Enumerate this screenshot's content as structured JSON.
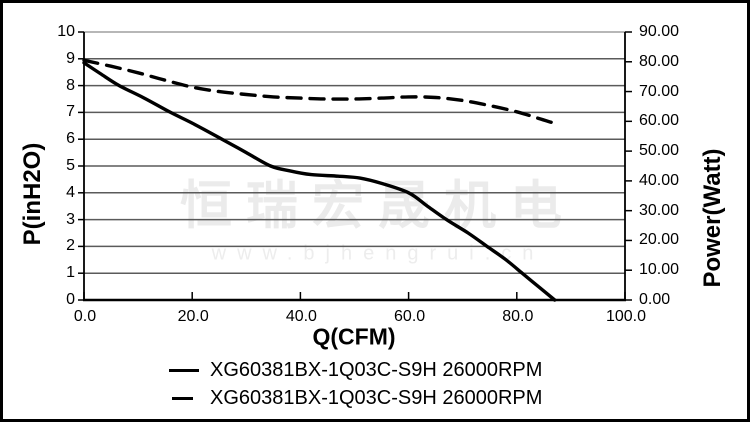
{
  "watermark": {
    "chinese": "恒瑞宏晟机电",
    "url": "www.bjhengrui.cn"
  },
  "colors": {
    "line": "#000000",
    "gridline": "#5a5a5a",
    "plot_border": "#000000",
    "watermark": "#ebebeb"
  },
  "chart_data": {
    "type": "line",
    "title": "",
    "grid": true,
    "x_axis": {
      "label": "Q(CFM)",
      "min": 0,
      "max": 100,
      "ticks": [
        0,
        20,
        40,
        60,
        80,
        100
      ],
      "tick_labels": [
        "0.0",
        "20.0",
        "40.0",
        "60.0",
        "80.0",
        "100.0"
      ]
    },
    "y_left": {
      "label": "P(inH2O)",
      "min": 0,
      "max": 10,
      "ticks": [
        0,
        1,
        2,
        3,
        4,
        5,
        6,
        7,
        8,
        9,
        10
      ],
      "tick_labels": [
        "0",
        "1",
        "2",
        "3",
        "4",
        "5",
        "6",
        "7",
        "8",
        "9",
        "10"
      ]
    },
    "y_right": {
      "label": "Power(Watt)",
      "min": 0,
      "max": 90,
      "ticks": [
        0,
        10,
        20,
        30,
        40,
        50,
        60,
        70,
        80,
        90
      ],
      "tick_labels": [
        "0.00",
        "10.00",
        "20.00",
        "30.00",
        "40.00",
        "50.00",
        "60.00",
        "70.00",
        "80.00",
        "90.00"
      ]
    },
    "series": [
      {
        "name": "XG60381BX-1Q03C-S9H 26000RPM",
        "axis": "left",
        "line_style": "solid",
        "color": "#000000",
        "points": [
          [
            0,
            8.85
          ],
          [
            3,
            8.45
          ],
          [
            6.5,
            8.0
          ],
          [
            11,
            7.55
          ],
          [
            16,
            7.0
          ],
          [
            20,
            6.6
          ],
          [
            25.5,
            6.0
          ],
          [
            30,
            5.5
          ],
          [
            34.5,
            5.0
          ],
          [
            38,
            4.82
          ],
          [
            42,
            4.68
          ],
          [
            47,
            4.62
          ],
          [
            51,
            4.55
          ],
          [
            55,
            4.35
          ],
          [
            60,
            4.0
          ],
          [
            63.5,
            3.5
          ],
          [
            67,
            3.0
          ],
          [
            71,
            2.5
          ],
          [
            74.5,
            2.0
          ],
          [
            78,
            1.5
          ],
          [
            81,
            1.0
          ],
          [
            84,
            0.5
          ],
          [
            87,
            0.0
          ]
        ]
      },
      {
        "name": "XG60381BX-1Q03C-S9H 26000RPM",
        "axis": "right",
        "line_style": "dashed",
        "color": "#000000",
        "points": [
          [
            0,
            80.5
          ],
          [
            5,
            78.5
          ],
          [
            10,
            76.3
          ],
          [
            15,
            73.8
          ],
          [
            20,
            71.5
          ],
          [
            25,
            70.0
          ],
          [
            30,
            69.0
          ],
          [
            35,
            68.2
          ],
          [
            40,
            67.8
          ],
          [
            45,
            67.5
          ],
          [
            50,
            67.5
          ],
          [
            55,
            67.8
          ],
          [
            60,
            68.2
          ],
          [
            65,
            68.0
          ],
          [
            70,
            67.0
          ],
          [
            75,
            65.3
          ],
          [
            80,
            63.2
          ],
          [
            84,
            61.0
          ],
          [
            87,
            59.3
          ]
        ]
      }
    ],
    "legend": {
      "position": "bottom",
      "items": [
        {
          "label": "XG60381BX-1Q03C-S9H 26000RPM",
          "line_style": "solid"
        },
        {
          "label": "XG60381BX-1Q03C-S9H 26000RPM",
          "line_style": "dashed"
        }
      ]
    }
  }
}
